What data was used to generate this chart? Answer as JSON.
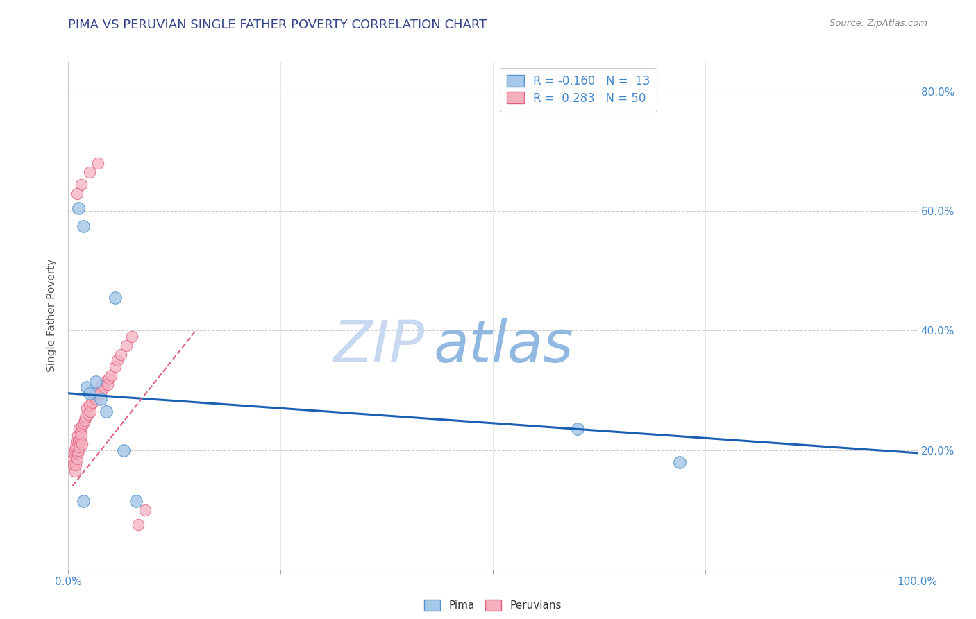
{
  "title": "PIMA VS PERUVIAN SINGLE FATHER POVERTY CORRELATION CHART",
  "source": "Source: ZipAtlas.com",
  "ylabel": "Single Father Poverty",
  "xlim": [
    0,
    1.0
  ],
  "ylim": [
    0,
    0.85
  ],
  "xticks": [
    0.0,
    0.25,
    0.5,
    0.75,
    1.0
  ],
  "xtick_labels": [
    "0.0%",
    "",
    "",
    "",
    "100.0%"
  ],
  "yticks": [
    0.0,
    0.2,
    0.4,
    0.6,
    0.8
  ],
  "right_ytick_labels": [
    "",
    "20.0%",
    "40.0%",
    "60.0%",
    "80.0%"
  ],
  "legend_r_pima": "-0.160",
  "legend_n_pima": "13",
  "legend_r_peruvian": "0.283",
  "legend_n_peruvian": "50",
  "pima_color": "#a8c8e8",
  "peruvian_color": "#f5b0c0",
  "pima_edge_color": "#5090d0",
  "peruvian_edge_color": "#e06080",
  "pima_line_color": "#1a5fb4",
  "peruvian_line_color": "#e06080",
  "watermark_zip_color": "#c8d8f0",
  "watermark_atlas_color": "#90b8e0",
  "grid_color": "#cccccc",
  "title_color": "#334488",
  "source_color": "#888888",
  "label_color": "#4488cc",
  "pima_x": [
    0.012,
    0.018,
    0.022,
    0.025,
    0.032,
    0.038,
    0.045,
    0.055,
    0.065,
    0.08,
    0.6,
    0.72,
    0.018
  ],
  "pima_y": [
    0.605,
    0.575,
    0.305,
    0.295,
    0.315,
    0.285,
    0.265,
    0.455,
    0.2,
    0.115,
    0.235,
    0.18,
    0.115
  ],
  "peruvian_x": [
    0.005,
    0.006,
    0.007,
    0.008,
    0.008,
    0.009,
    0.009,
    0.01,
    0.01,
    0.011,
    0.011,
    0.012,
    0.012,
    0.013,
    0.013,
    0.014,
    0.014,
    0.015,
    0.016,
    0.016,
    0.018,
    0.019,
    0.02,
    0.022,
    0.023,
    0.025,
    0.026,
    0.028,
    0.03,
    0.032,
    0.034,
    0.036,
    0.038,
    0.04,
    0.042,
    0.044,
    0.046,
    0.048,
    0.05,
    0.055,
    0.058,
    0.062,
    0.068,
    0.075,
    0.082,
    0.09,
    0.035,
    0.025,
    0.015,
    0.01
  ],
  "peruvian_y": [
    0.185,
    0.175,
    0.195,
    0.165,
    0.2,
    0.205,
    0.175,
    0.215,
    0.185,
    0.195,
    0.225,
    0.215,
    0.2,
    0.205,
    0.235,
    0.215,
    0.23,
    0.225,
    0.24,
    0.21,
    0.245,
    0.25,
    0.255,
    0.27,
    0.26,
    0.275,
    0.265,
    0.28,
    0.29,
    0.285,
    0.295,
    0.3,
    0.295,
    0.31,
    0.305,
    0.315,
    0.31,
    0.32,
    0.325,
    0.34,
    0.35,
    0.36,
    0.375,
    0.39,
    0.075,
    0.1,
    0.68,
    0.665,
    0.645,
    0.63
  ],
  "pima_line_x": [
    0.0,
    1.0
  ],
  "pima_line_y": [
    0.295,
    0.195
  ],
  "peruvian_line_x": [
    0.005,
    0.15
  ],
  "peruvian_line_y": [
    0.14,
    0.4
  ]
}
